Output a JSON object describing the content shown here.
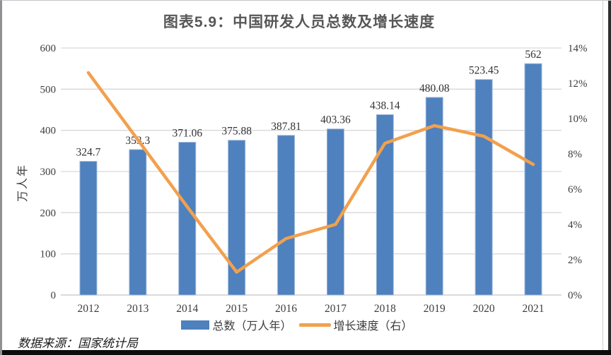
{
  "page": {
    "title": "图表5.9：中国研发人员总数及增长速度",
    "source": "数据来源：国家统计局"
  },
  "chart_data": {
    "type": "bar",
    "subtype": "bar-line-combo",
    "title": "图表5.9：中国研发人员总数及增长速度",
    "categories": [
      "2012",
      "2013",
      "2014",
      "2015",
      "2016",
      "2017",
      "2018",
      "2019",
      "2020",
      "2021"
    ],
    "series": [
      {
        "name": "总数（万人年）",
        "type": "bar",
        "axis": "left",
        "values": [
          324.7,
          353.3,
          371.06,
          375.88,
          387.81,
          403.36,
          438.14,
          480.08,
          523.45,
          562
        ],
        "labels": [
          "324.7",
          "353.3",
          "371.06",
          "375.88",
          "387.81",
          "403.36",
          "438.14",
          "480.08",
          "523.45",
          "562"
        ]
      },
      {
        "name": "增长速度（右）",
        "type": "line",
        "axis": "right",
        "values": [
          12.6,
          8.8,
          5.0,
          1.3,
          3.2,
          4.0,
          8.6,
          9.6,
          9.0,
          7.4
        ]
      }
    ],
    "left_axis": {
      "label": "万人年",
      "min": 0,
      "max": 600,
      "step": 100,
      "tick_labels": [
        "0",
        "100",
        "200",
        "300",
        "400",
        "500",
        "600"
      ]
    },
    "right_axis": {
      "min": 0,
      "max": 14,
      "step": 2,
      "tick_labels": [
        "0%",
        "2%",
        "4%",
        "6%",
        "8%",
        "10%",
        "12%",
        "14%"
      ]
    },
    "grid": true,
    "legend_position": "bottom",
    "colors": {
      "bar": "#4E81BD",
      "bar_edge": "#9FB9DB",
      "line": "#F2A04E",
      "gridline": "#D9D9D9",
      "axis_line": "#C4C4C4",
      "text": "#3D3D3D"
    }
  }
}
